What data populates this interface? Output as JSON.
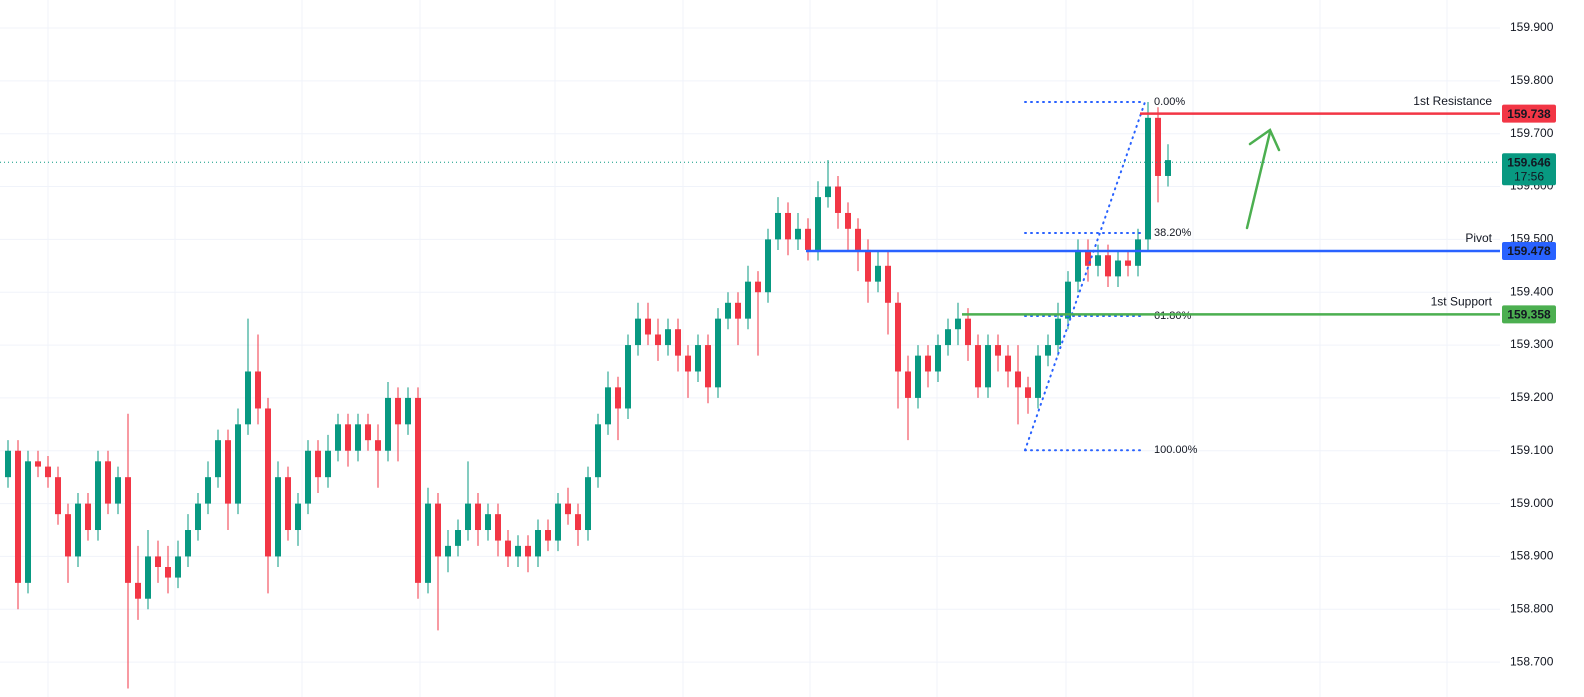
{
  "chart_data": {
    "type": "candlestick",
    "up_color": "#089981",
    "down_color": "#f23645",
    "open": [
      159.05,
      159.1,
      158.85,
      159.08,
      159.07,
      159.05,
      158.98,
      158.9,
      159.0,
      158.95,
      159.08,
      159.0,
      159.05,
      158.85,
      158.82,
      158.9,
      158.88,
      158.86,
      158.9,
      158.95,
      159.0,
      159.05,
      159.12,
      159.0,
      159.15,
      159.25,
      159.18,
      158.9,
      159.05,
      158.95,
      159.0,
      159.1,
      159.05,
      159.1,
      159.15,
      159.1,
      159.15,
      159.12,
      159.1,
      159.2,
      159.15,
      159.2,
      158.85,
      159.0,
      158.9,
      158.92,
      158.95,
      159.0,
      158.95,
      158.98,
      158.93,
      158.9,
      158.92,
      158.9,
      158.95,
      158.93,
      159.0,
      158.98,
      158.95,
      159.05,
      159.15,
      159.22,
      159.18,
      159.3,
      159.35,
      159.32,
      159.3,
      159.33,
      159.28,
      159.25,
      159.3,
      159.22,
      159.35,
      159.38,
      159.35,
      159.42,
      159.4,
      159.5,
      159.55,
      159.5,
      159.52,
      159.48,
      159.58,
      159.6,
      159.55,
      159.52,
      159.48,
      159.42,
      159.45,
      159.38,
      159.25,
      159.2,
      159.28,
      159.25,
      159.3,
      159.33,
      159.35,
      159.3,
      159.22,
      159.3,
      159.28,
      159.25,
      159.22,
      159.2,
      159.28,
      159.3,
      159.35,
      159.42,
      159.48,
      159.45,
      159.47,
      159.43,
      159.46,
      159.45,
      159.5,
      159.73,
      159.62
    ],
    "high": [
      159.12,
      159.12,
      159.1,
      159.1,
      159.09,
      159.07,
      159.0,
      159.02,
      159.02,
      159.1,
      159.1,
      159.07,
      159.17,
      158.92,
      158.95,
      158.93,
      158.92,
      158.93,
      158.98,
      159.02,
      159.08,
      159.14,
      159.14,
      159.18,
      159.35,
      159.32,
      159.2,
      159.08,
      159.07,
      159.02,
      159.12,
      159.12,
      159.13,
      159.17,
      159.17,
      159.17,
      159.17,
      159.15,
      159.23,
      159.22,
      159.22,
      159.22,
      159.03,
      159.02,
      158.95,
      158.97,
      159.08,
      159.02,
      159.0,
      159.0,
      158.95,
      158.94,
      158.94,
      158.97,
      158.97,
      159.02,
      159.03,
      159.0,
      159.07,
      159.17,
      159.25,
      159.24,
      159.32,
      159.38,
      159.38,
      159.35,
      159.35,
      159.35,
      159.3,
      159.32,
      159.32,
      159.37,
      159.4,
      159.4,
      159.45,
      159.44,
      159.52,
      159.58,
      159.57,
      159.55,
      159.54,
      159.61,
      159.65,
      159.62,
      159.57,
      159.54,
      159.5,
      159.48,
      159.48,
      159.4,
      159.28,
      159.3,
      159.3,
      159.32,
      159.35,
      159.38,
      159.37,
      159.32,
      159.32,
      159.32,
      159.3,
      159.3,
      159.24,
      159.3,
      159.32,
      159.38,
      159.44,
      159.5,
      159.5,
      159.49,
      159.49,
      159.48,
      159.48,
      159.52,
      159.76,
      159.75,
      159.68
    ],
    "low": [
      159.03,
      158.8,
      158.83,
      159.05,
      159.03,
      158.96,
      158.85,
      158.88,
      158.93,
      158.93,
      158.98,
      158.98,
      158.65,
      158.78,
      158.8,
      158.85,
      158.83,
      158.84,
      158.88,
      158.93,
      158.98,
      159.03,
      158.95,
      158.98,
      159.13,
      159.15,
      158.83,
      158.88,
      158.93,
      158.92,
      158.98,
      159.02,
      159.03,
      159.08,
      159.07,
      159.08,
      159.1,
      159.03,
      159.08,
      159.08,
      159.13,
      158.82,
      158.83,
      158.76,
      158.87,
      158.9,
      158.93,
      158.92,
      158.93,
      158.9,
      158.88,
      158.88,
      158.87,
      158.88,
      158.91,
      158.91,
      158.96,
      158.92,
      158.93,
      159.03,
      159.13,
      159.12,
      159.16,
      159.28,
      159.3,
      159.27,
      159.28,
      159.25,
      159.2,
      159.23,
      159.19,
      159.2,
      159.33,
      159.3,
      159.33,
      159.28,
      159.38,
      159.48,
      159.47,
      159.48,
      159.46,
      159.46,
      159.56,
      159.52,
      159.48,
      159.44,
      159.38,
      159.4,
      159.32,
      159.18,
      159.12,
      159.18,
      159.22,
      159.23,
      159.28,
      159.3,
      159.27,
      159.2,
      159.2,
      159.25,
      159.22,
      159.15,
      159.17,
      159.18,
      159.26,
      159.28,
      159.33,
      159.4,
      159.42,
      159.43,
      159.41,
      159.41,
      159.43,
      159.43,
      159.48,
      159.57,
      159.6
    ],
    "close": [
      159.1,
      158.85,
      159.08,
      159.07,
      159.05,
      158.98,
      158.9,
      159.0,
      158.95,
      159.08,
      159.0,
      159.05,
      158.85,
      158.82,
      158.9,
      158.88,
      158.86,
      158.9,
      158.95,
      159.0,
      159.05,
      159.12,
      159.0,
      159.15,
      159.25,
      159.18,
      158.9,
      159.05,
      158.95,
      159.0,
      159.1,
      159.05,
      159.1,
      159.15,
      159.1,
      159.15,
      159.12,
      159.1,
      159.2,
      159.15,
      159.2,
      158.85,
      159.0,
      158.9,
      158.92,
      158.95,
      159.0,
      158.95,
      158.98,
      158.93,
      158.9,
      158.92,
      158.9,
      158.95,
      158.93,
      159.0,
      158.98,
      158.95,
      159.05,
      159.15,
      159.22,
      159.18,
      159.3,
      159.35,
      159.32,
      159.3,
      159.33,
      159.28,
      159.25,
      159.3,
      159.22,
      159.35,
      159.38,
      159.35,
      159.42,
      159.4,
      159.5,
      159.55,
      159.5,
      159.52,
      159.48,
      159.58,
      159.6,
      159.55,
      159.52,
      159.48,
      159.42,
      159.45,
      159.38,
      159.25,
      159.2,
      159.28,
      159.25,
      159.3,
      159.33,
      159.35,
      159.3,
      159.22,
      159.3,
      159.28,
      159.25,
      159.22,
      159.2,
      159.28,
      159.3,
      159.35,
      159.42,
      159.48,
      159.45,
      159.47,
      159.43,
      159.46,
      159.45,
      159.5,
      159.73,
      159.62,
      159.65
    ],
    "ylim": [
      158.634,
      159.953
    ],
    "yticks": [
      {
        "value": 158.7,
        "label": "158.700"
      },
      {
        "value": 158.8,
        "label": "158.800"
      },
      {
        "value": 158.9,
        "label": "158.900"
      },
      {
        "value": 159.0,
        "label": "159.000"
      },
      {
        "value": 159.1,
        "label": "159.100"
      },
      {
        "value": 159.2,
        "label": "159.200"
      },
      {
        "value": 159.3,
        "label": "159.300"
      },
      {
        "value": 159.4,
        "label": "159.400"
      },
      {
        "value": 159.5,
        "label": "159.500"
      },
      {
        "value": 159.6,
        "label": "159.600"
      },
      {
        "value": 159.7,
        "label": "159.700"
      },
      {
        "value": 159.8,
        "label": "159.800"
      },
      {
        "value": 159.9,
        "label": "159.900"
      }
    ],
    "levels": [
      {
        "name": "1st Resistance",
        "value": 159.738,
        "color": "#f23645"
      },
      {
        "name": "Pivot",
        "value": 159.478,
        "color": "#2962ff"
      },
      {
        "name": "1st Support",
        "value": 159.358,
        "color": "#4caf50"
      }
    ],
    "current_price": {
      "value": 159.646,
      "countdown": "17:56",
      "color": "#089981"
    },
    "fibonacci": {
      "color": "#2962ff",
      "levels": [
        {
          "value": 0,
          "label": "0.00%",
          "price": 159.76
        },
        {
          "value": 38.2,
          "label": "38.20%",
          "price": 159.512
        },
        {
          "value": 61.8,
          "label": "61.80%",
          "price": 159.355
        },
        {
          "value": 100,
          "label": "100.00%",
          "price": 159.101
        }
      ]
    }
  }
}
